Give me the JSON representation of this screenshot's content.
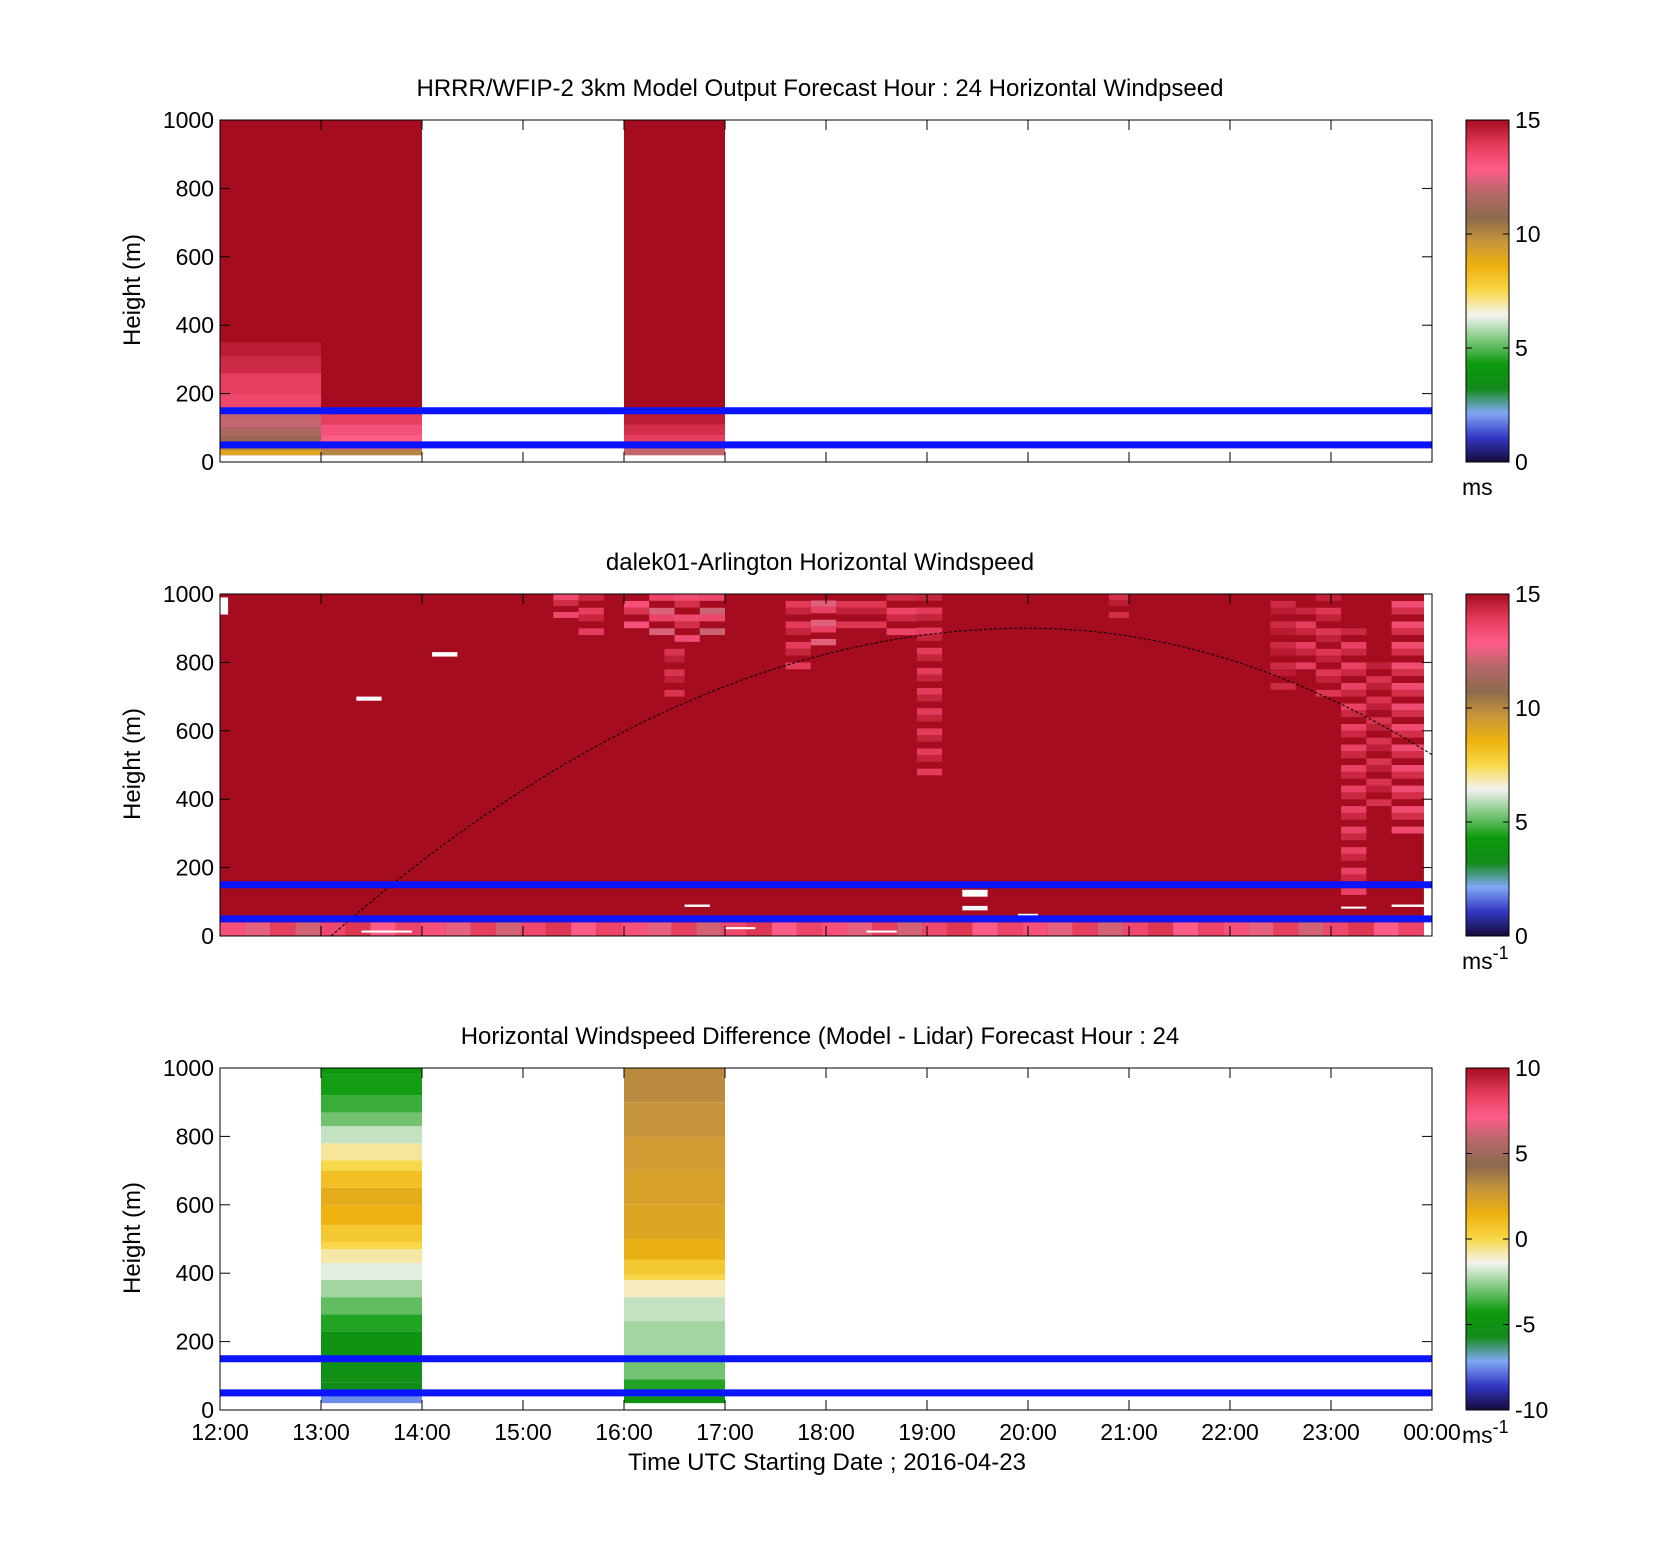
{
  "figure": {
    "xlabel": "Time UTC  Starting Date ; 2016-04-23",
    "x_ticks": [
      "12:00",
      "13:00",
      "14:00",
      "15:00",
      "16:00",
      "17:00",
      "18:00",
      "19:00",
      "20:00",
      "21:00",
      "22:00",
      "23:00",
      "00:00"
    ]
  },
  "chart_data": [
    {
      "type": "heatmap",
      "title": "HRRR/WFIP-2 3km Model Output   Forecast Hour : 24 Horizontal Windpseed",
      "ylabel": "Height (m)",
      "xlim": [
        12,
        24
      ],
      "ylim": [
        0,
        1000
      ],
      "y_ticks": [
        "0",
        "200",
        "400",
        "600",
        "800",
        "1000"
      ],
      "colorbar": {
        "range": [
          0,
          15
        ],
        "ticks": [
          "0",
          "5",
          "10",
          "15"
        ],
        "unit": "ms",
        "unit_sup": "",
        "colormap": [
          "#160b3c",
          "#3437c4",
          "#80a8f5",
          "#138a1a",
          "#0c9a0c",
          "#7dc77d",
          "#f3f3f0",
          "#f8d84a",
          "#eeb20f",
          "#c8963a",
          "#8d6a4e",
          "#b46868",
          "#ff5c8a",
          "#e23a58",
          "#a60c20"
        ]
      },
      "reference_lines_m": [
        50,
        150
      ],
      "columns": [
        {
          "x0": 12,
          "x1": 13,
          "z0": 20,
          "cells": [
            [
              20,
              35,
              9
            ],
            [
              35,
              50,
              10
            ],
            [
              50,
              75,
              11
            ],
            [
              75,
              100,
              11.5
            ],
            [
              100,
              130,
              12
            ],
            [
              130,
              150,
              12
            ],
            [
              150,
              200,
              13.5
            ],
            [
              200,
              260,
              13.8
            ],
            [
              260,
              310,
              14.3
            ],
            [
              310,
              350,
              14.6
            ]
          ],
          "fill_above": 15
        },
        {
          "x0": 13,
          "x1": 14,
          "z0": 20,
          "cells": [
            [
              20,
              35,
              10
            ],
            [
              35,
              55,
              12
            ],
            [
              55,
              80,
              12.8
            ],
            [
              80,
              110,
              13.2
            ],
            [
              110,
              140,
              13.8
            ]
          ],
          "fill_above": 15
        },
        {
          "x0": 16,
          "x1": 17,
          "z0": 20,
          "cells": [
            [
              20,
              40,
              12
            ],
            [
              40,
              60,
              13
            ],
            [
              60,
              80,
              13.8
            ],
            [
              80,
              110,
              14.2
            ],
            [
              110,
              140,
              14.6
            ]
          ],
          "fill_above": 15
        }
      ]
    },
    {
      "type": "heatmap",
      "title": "dalek01-Arlington  Horizontal Windspeed",
      "ylabel": "Height (m)",
      "xlim": [
        12,
        24
      ],
      "ylim": [
        0,
        1000
      ],
      "y_ticks": [
        "0",
        "200",
        "400",
        "600",
        "800",
        "1000"
      ],
      "colorbar": {
        "range": [
          0,
          15
        ],
        "ticks": [
          "0",
          "5",
          "10",
          "15"
        ],
        "unit": "ms",
        "unit_sup": "-1",
        "colormap": [
          "#160b3c",
          "#3437c4",
          "#80a8f5",
          "#138a1a",
          "#0c9a0c",
          "#7dc77d",
          "#f3f3f0",
          "#f8d84a",
          "#eeb20f",
          "#c8963a",
          "#8d6a4e",
          "#b46868",
          "#ff5c8a",
          "#e23a58",
          "#a60c20"
        ]
      },
      "reference_lines_m": [
        50,
        150
      ],
      "data_extent": {
        "x0": 12,
        "x1": 23.92,
        "z0": 0,
        "z1": 1000,
        "value": 15
      },
      "near_surface_band": {
        "z0": 0,
        "z1": 40,
        "values": [
          13.2,
          12.5,
          13.8,
          12.2,
          13.5,
          14.0,
          12.8,
          13.6
        ]
      },
      "patches": [
        {
          "x0": 15.3,
          "x1": 15.55,
          "z0": 930,
          "z1": 1000,
          "value": 13.5
        },
        {
          "x0": 15.55,
          "x1": 15.8,
          "z0": 880,
          "z1": 1000,
          "value": 13.8
        },
        {
          "x0": 16.0,
          "x1": 16.25,
          "z0": 900,
          "z1": 1000,
          "value": 13.2
        },
        {
          "x0": 16.25,
          "x1": 16.5,
          "z0": 880,
          "z1": 1000,
          "value": 12.3
        },
        {
          "x0": 16.5,
          "x1": 16.75,
          "z0": 860,
          "z1": 1000,
          "value": 13.4
        },
        {
          "x0": 16.75,
          "x1": 17.0,
          "z0": 880,
          "z1": 1000,
          "value": 12.1
        },
        {
          "x0": 16.4,
          "x1": 16.6,
          "z0": 700,
          "z1": 860,
          "value": 14.1
        },
        {
          "x0": 17.6,
          "x1": 17.85,
          "z0": 780,
          "z1": 1000,
          "value": 13.9
        },
        {
          "x0": 17.85,
          "x1": 18.1,
          "z0": 850,
          "z1": 1000,
          "value": 12.4
        },
        {
          "x0": 18.1,
          "x1": 18.6,
          "z0": 900,
          "z1": 1000,
          "value": 14.0
        },
        {
          "x0": 18.6,
          "x1": 18.9,
          "z0": 880,
          "z1": 1000,
          "value": 13.6
        },
        {
          "x0": 18.9,
          "x1": 19.15,
          "z0": 470,
          "z1": 1000,
          "value": 13.9
        },
        {
          "x0": 20.8,
          "x1": 21.0,
          "z0": 930,
          "z1": 1000,
          "value": 14.2
        },
        {
          "x0": 22.85,
          "x1": 23.1,
          "z0": 700,
          "z1": 1000,
          "value": 14.0
        },
        {
          "x0": 23.1,
          "x1": 23.35,
          "z0": 120,
          "z1": 900,
          "value": 13.7
        },
        {
          "x0": 23.35,
          "x1": 23.6,
          "z0": 380,
          "z1": 800,
          "value": 14.1
        },
        {
          "x0": 23.6,
          "x1": 23.92,
          "z0": 300,
          "z1": 1000,
          "value": 13.4
        },
        {
          "x0": 22.4,
          "x1": 22.65,
          "z0": 720,
          "z1": 1000,
          "value": 14.3
        },
        {
          "x0": 22.65,
          "x1": 22.85,
          "z0": 780,
          "z1": 960,
          "value": 13.8
        }
      ],
      "missing": [
        {
          "x0": 12.0,
          "x1": 12.08,
          "z0": 940,
          "z1": 990
        },
        {
          "x0": 14.1,
          "x1": 14.35,
          "z0": 817,
          "z1": 830
        },
        {
          "x0": 13.35,
          "x1": 13.6,
          "z0": 688,
          "z1": 700
        },
        {
          "x0": 16.6,
          "x1": 16.85,
          "z0": 85,
          "z1": 92
        },
        {
          "x0": 19.35,
          "x1": 19.6,
          "z0": 115,
          "z1": 135
        },
        {
          "x0": 19.35,
          "x1": 19.6,
          "z0": 75,
          "z1": 88
        },
        {
          "x0": 19.9,
          "x1": 20.1,
          "z0": 60,
          "z1": 65
        },
        {
          "x0": 23.1,
          "x1": 23.35,
          "z0": 80,
          "z1": 86
        },
        {
          "x0": 23.6,
          "x1": 23.92,
          "z0": 85,
          "z1": 92
        },
        {
          "x0": 13.4,
          "x1": 13.9,
          "z0": 10,
          "z1": 16
        },
        {
          "x0": 17.0,
          "x1": 17.3,
          "z0": 20,
          "z1": 26
        },
        {
          "x0": 18.4,
          "x1": 18.7,
          "z0": 10,
          "z1": 16
        }
      ],
      "curve": {
        "x_start": 13.1,
        "x_peak": 20.0,
        "z_peak": 900,
        "x_end": 24.0,
        "z_end": 530
      }
    },
    {
      "type": "heatmap",
      "title": "Horizontal Windspeed Difference (Model - Lidar) Forecast Hour : 24",
      "ylabel": "Height (m)",
      "xlim": [
        12,
        24
      ],
      "ylim": [
        0,
        1000
      ],
      "y_ticks": [
        "0",
        "200",
        "400",
        "600",
        "800",
        "1000"
      ],
      "colorbar": {
        "range": [
          -10,
          10
        ],
        "ticks": [
          "-10",
          "-5",
          "0",
          "5",
          "10"
        ],
        "unit": "ms",
        "unit_sup": "-1",
        "colormap": [
          "#160b3c",
          "#3437c4",
          "#80a8f5",
          "#138a1a",
          "#0c9a0c",
          "#7dc77d",
          "#f3f3f0",
          "#f8d84a",
          "#eeb20f",
          "#c8963a",
          "#8d6a4e",
          "#b46868",
          "#ff5c8a",
          "#e23a58",
          "#a60c20"
        ]
      },
      "reference_lines_m": [
        50,
        150
      ],
      "columns": [
        {
          "x0": 13,
          "x1": 14,
          "z0": 20,
          "cells": [
            [
              20,
              40,
              -7.5
            ],
            [
              40,
              80,
              -5.5
            ],
            [
              80,
              150,
              -5.2
            ],
            [
              150,
              230,
              -5.0
            ],
            [
              230,
              280,
              -4.0
            ],
            [
              280,
              330,
              -3.2
            ],
            [
              330,
              380,
              -2.4
            ],
            [
              380,
              430,
              -1.6
            ],
            [
              430,
              470,
              -0.8
            ],
            [
              470,
              490,
              0.0
            ],
            [
              490,
              540,
              0.6
            ],
            [
              540,
              600,
              1.4
            ],
            [
              600,
              650,
              1.8
            ],
            [
              650,
              700,
              0.9
            ],
            [
              700,
              730,
              0.0
            ],
            [
              730,
              780,
              -0.7
            ],
            [
              780,
              830,
              -2.0
            ],
            [
              830,
              870,
              -3.0
            ],
            [
              870,
              920,
              -3.7
            ],
            [
              920,
              980,
              -4.2
            ],
            [
              980,
              1000,
              -4.5
            ]
          ]
        },
        {
          "x0": 16,
          "x1": 17,
          "z0": 20,
          "cells": [
            [
              20,
              40,
              -5.0
            ],
            [
              40,
              90,
              -4.0
            ],
            [
              90,
              160,
              -3.0
            ],
            [
              160,
              260,
              -2.4
            ],
            [
              260,
              330,
              -2.0
            ],
            [
              330,
              380,
              -1.0
            ],
            [
              380,
              395,
              0.0
            ],
            [
              395,
              440,
              0.6
            ],
            [
              440,
              500,
              1.6
            ],
            [
              500,
              600,
              2.1
            ],
            [
              600,
              700,
              2.3
            ],
            [
              700,
              800,
              2.6
            ],
            [
              800,
              900,
              2.9
            ],
            [
              900,
              1000,
              3.2
            ]
          ]
        }
      ]
    }
  ]
}
